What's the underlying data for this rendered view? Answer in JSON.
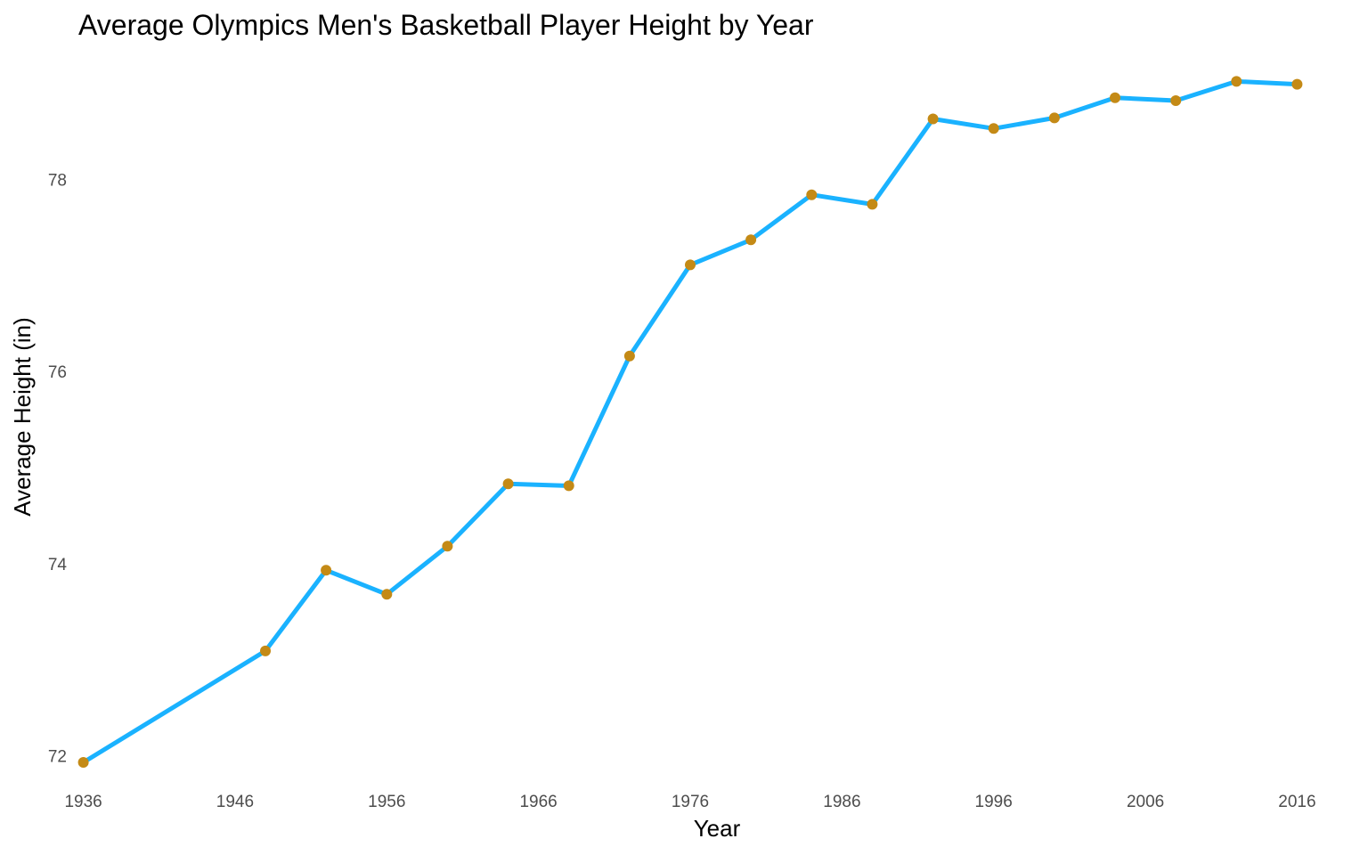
{
  "chart_data": {
    "type": "line",
    "title": "Average Olympics Men's Basketball Player Height by Year",
    "xlabel": "Year",
    "ylabel": "Average Height (in)",
    "x_ticks": [
      1936,
      1946,
      1956,
      1966,
      1976,
      1986,
      1996,
      2006,
      2016
    ],
    "y_ticks": [
      72,
      74,
      76,
      78
    ],
    "xlim": [
      1934.5,
      2017.5
    ],
    "ylim": [
      71.8,
      79.2
    ],
    "grid": false,
    "series": [
      {
        "x": [
          1936,
          1948,
          1952,
          1956,
          1960,
          1964,
          1968,
          1972,
          1976,
          1980,
          1984,
          1988,
          1992,
          1996,
          2000,
          2004,
          2008,
          2012,
          2016
        ],
        "y": [
          71.93,
          73.09,
          73.93,
          73.68,
          74.18,
          74.83,
          74.81,
          76.16,
          77.11,
          77.37,
          77.84,
          77.74,
          78.63,
          78.53,
          78.64,
          78.85,
          78.82,
          79.02,
          78.99
        ]
      }
    ],
    "line_color": "#1ab2ff",
    "point_color": "#c48a16"
  }
}
